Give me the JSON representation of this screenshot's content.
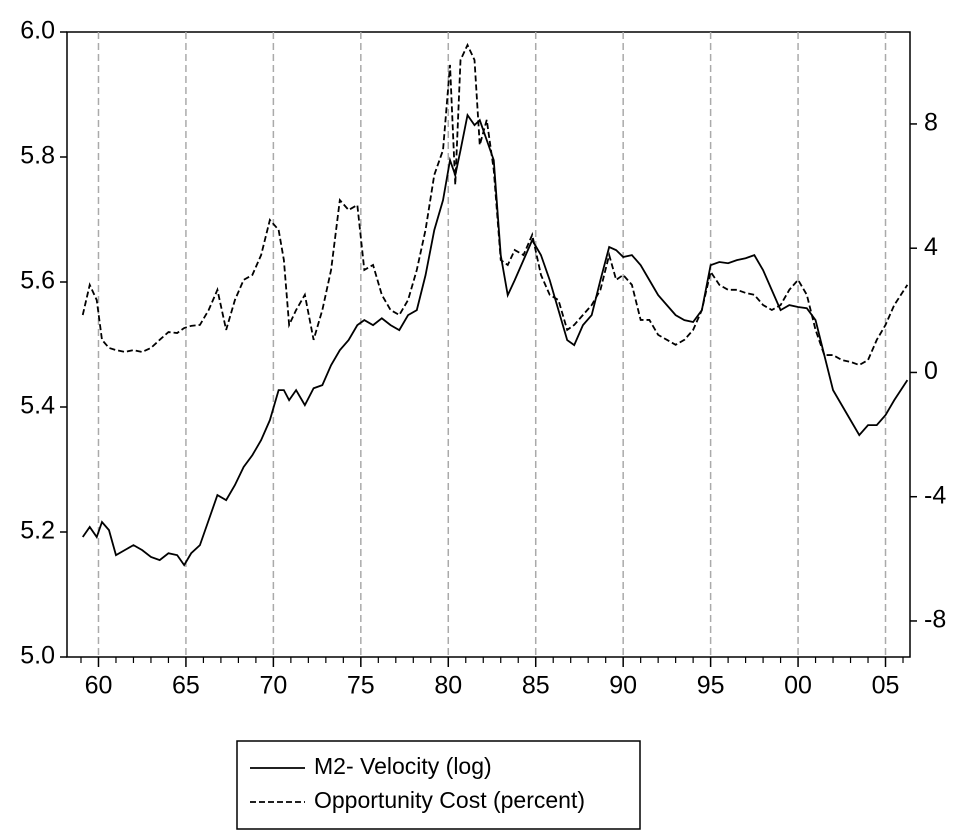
{
  "chart_data": {
    "type": "line",
    "x": [
      1959.1,
      1959.5,
      1959.9,
      1960.2,
      1960.6,
      1961,
      1961.5,
      1962,
      1962.5,
      1963,
      1963.5,
      1964,
      1964.5,
      1964.9,
      1965.3,
      1965.8,
      1966.3,
      1966.8,
      1967.3,
      1967.8,
      1968.3,
      1968.8,
      1969.3,
      1969.8,
      1970.3,
      1970.6,
      1970.9,
      1971.3,
      1971.8,
      1972.3,
      1972.8,
      1973.3,
      1973.8,
      1974.3,
      1974.8,
      1975.2,
      1975.7,
      1976.2,
      1976.7,
      1977.2,
      1977.7,
      1978.2,
      1978.7,
      1979.2,
      1979.7,
      1980.1,
      1980.4,
      1980.7,
      1981.1,
      1981.5,
      1981.8,
      1982.2,
      1982.6,
      1983,
      1983.4,
      1983.8,
      1984.3,
      1984.8,
      1985.3,
      1985.8,
      1986.3,
      1986.8,
      1987.2,
      1987.7,
      1988.2,
      1988.7,
      1989.2,
      1989.6,
      1990,
      1990.5,
      1991,
      1991.5,
      1992,
      1992.5,
      1993,
      1993.5,
      1994,
      1994.5,
      1995,
      1995.5,
      1996,
      1996.5,
      1997,
      1997.5,
      1998,
      1998.5,
      1999,
      1999.5,
      2000,
      2000.5,
      2001,
      2001.5,
      2002,
      2002.5,
      2003,
      2003.5,
      2004,
      2004.5,
      2005,
      2005.5,
      2006.25
    ],
    "series": [
      {
        "name": "M2- Velocity (log)",
        "color": "#000000",
        "line_style": "solid",
        "axis": "y",
        "values": [
          5.192,
          5.208,
          5.192,
          5.216,
          5.203,
          5.163,
          5.171,
          5.179,
          5.171,
          5.16,
          5.155,
          5.166,
          5.163,
          5.147,
          5.166,
          5.179,
          5.219,
          5.259,
          5.251,
          5.275,
          5.304,
          5.323,
          5.347,
          5.379,
          5.427,
          5.427,
          5.411,
          5.427,
          5.403,
          5.43,
          5.435,
          5.467,
          5.491,
          5.507,
          5.531,
          5.539,
          5.531,
          5.542,
          5.531,
          5.523,
          5.547,
          5.555,
          5.611,
          5.683,
          5.731,
          5.795,
          5.771,
          5.811,
          5.867,
          5.851,
          5.859,
          5.827,
          5.795,
          5.643,
          5.579,
          5.603,
          5.635,
          5.667,
          5.643,
          5.603,
          5.555,
          5.507,
          5.499,
          5.531,
          5.547,
          5.603,
          5.656,
          5.651,
          5.64,
          5.643,
          5.627,
          5.603,
          5.579,
          5.563,
          5.547,
          5.539,
          5.536,
          5.555,
          5.627,
          5.632,
          5.63,
          5.635,
          5.638,
          5.643,
          5.619,
          5.587,
          5.555,
          5.563,
          5.56,
          5.558,
          5.539,
          5.483,
          5.427,
          5.403,
          5.379,
          5.355,
          5.371,
          5.371,
          5.387,
          5.411,
          5.443
        ]
      },
      {
        "name": "Opportunity Cost (percent)",
        "color": "#000000",
        "line_style": "dashed",
        "axis": "y2",
        "values": [
          1.85,
          2.82,
          2.33,
          1.05,
          0.79,
          0.72,
          0.66,
          0.72,
          0.66,
          0.79,
          1.05,
          1.3,
          1.27,
          1.43,
          1.5,
          1.53,
          2.01,
          2.66,
          1.37,
          2.33,
          2.98,
          3.14,
          3.78,
          4.91,
          4.59,
          3.62,
          1.53,
          2.01,
          2.5,
          1.05,
          2.01,
          3.3,
          5.55,
          5.23,
          5.39,
          3.3,
          3.46,
          2.5,
          2.01,
          1.85,
          2.33,
          3.3,
          4.59,
          6.36,
          7.16,
          9.9,
          6.04,
          10.06,
          10.54,
          10.06,
          7.32,
          8.13,
          6.52,
          3.62,
          3.46,
          3.94,
          3.78,
          4.43,
          3.14,
          2.5,
          2.33,
          1.37,
          1.53,
          1.85,
          2.17,
          2.66,
          3.78,
          2.98,
          3.14,
          2.82,
          1.69,
          1.69,
          1.21,
          1.05,
          0.89,
          1.05,
          1.37,
          2.01,
          3.24,
          2.82,
          2.66,
          2.66,
          2.56,
          2.5,
          2.17,
          2.01,
          2.17,
          2.66,
          2.98,
          2.5,
          1.37,
          0.56,
          0.56,
          0.4,
          0.34,
          0.24,
          0.4,
          1.05,
          1.53,
          2.17,
          2.82
        ]
      }
    ],
    "xlim": [
      1958.2,
      2006.4
    ],
    "xticks": [
      {
        "value": 1960,
        "label": "60"
      },
      {
        "value": 1965,
        "label": "65"
      },
      {
        "value": 1970,
        "label": "70"
      },
      {
        "value": 1975,
        "label": "75"
      },
      {
        "value": 1980,
        "label": "80"
      },
      {
        "value": 1985,
        "label": "85"
      },
      {
        "value": 1990,
        "label": "90"
      },
      {
        "value": 1995,
        "label": "95"
      },
      {
        "value": 2000,
        "label": "00"
      },
      {
        "value": 2005,
        "label": "05"
      }
    ],
    "xminorticks": [
      1959,
      1961,
      1962,
      1963,
      1964,
      1966,
      1967,
      1968,
      1969,
      1971,
      1972,
      1973,
      1974,
      1976,
      1977,
      1978,
      1979,
      1981,
      1982,
      1983,
      1984,
      1986,
      1987,
      1988,
      1989,
      1991,
      1992,
      1993,
      1994,
      1996,
      1997,
      1998,
      1999,
      2001,
      2002,
      2003,
      2004,
      2006
    ],
    "ylim": [
      5.0,
      6.0
    ],
    "yticks": [
      {
        "value": 5.0,
        "label": "5.0"
      },
      5.2,
      5.4,
      5.6,
      5.8,
      {
        "value": 6.0,
        "label": "6.0"
      }
    ],
    "y2lim": [
      -9.16,
      10.96
    ],
    "y2ticks": [
      -8,
      -4,
      0,
      4,
      8
    ],
    "xgrid": true,
    "grid_color": "#aaaaaa"
  }
}
